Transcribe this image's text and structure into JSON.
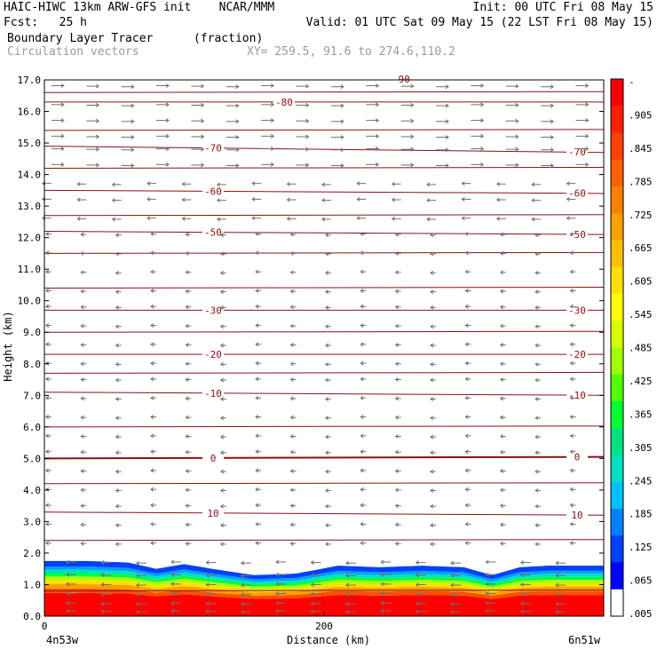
{
  "header": {
    "line1_left": "HAIC-HIWC 13km ARW-GFS init    NCAR/MMM",
    "line1_right": "Init: 00 UTC Fri 08 May 15",
    "line2_left": "Fcst:   25 h",
    "line2_right": "Valid: 01 UTC Sat 09 May 15 (22 LST Fri 08 May 15)",
    "field_name": "Boundary Layer Tracer",
    "field_units": "(fraction)",
    "overlay_name": "Circulation vectors",
    "xsec_coords": "XY= 259.5, 91.6 to 274.6,110.2"
  },
  "chart_data": {
    "type": "heatmap",
    "title": "Boundary Layer Tracer",
    "xlabel": "Distance (km)",
    "ylabel": "Height (km)",
    "xlim": [
      0,
      400
    ],
    "ylim": [
      0,
      17
    ],
    "grid": false,
    "x_ticks": [
      {
        "value": 0,
        "label": "0"
      },
      {
        "value": 200,
        "label": "200"
      }
    ],
    "x_end_labels": {
      "left": "4n53w",
      "right": "6n51w"
    },
    "y_ticks": [
      "0.0",
      "1.0",
      "2.0",
      "3.0",
      "4.0",
      "5.0",
      "6.0",
      "7.0",
      "8.0",
      "9.0",
      "10.0",
      "11.0",
      "12.0",
      "13.0",
      "14.0",
      "15.0",
      "16.0",
      "17.0"
    ],
    "colorbar": {
      "labels": [
        "-",
        ".905",
        ".845",
        ".785",
        ".725",
        ".665",
        ".605",
        ".545",
        ".485",
        ".425",
        ".365",
        ".305",
        ".245",
        ".185",
        ".125",
        ".065",
        ".005"
      ],
      "colors": [
        "#ff0000",
        "#ff2000",
        "#ff4000",
        "#ff6000",
        "#ff8000",
        "#ff9f00",
        "#ffbf00",
        "#ffdf00",
        "#ffff00",
        "#d8ff00",
        "#a0ff00",
        "#50ff00",
        "#00ff30",
        "#00e080",
        "#00e0c0",
        "#00c0ff",
        "#0080ff",
        "#0040ff",
        "#0000ff",
        "#ffffff"
      ]
    },
    "boundary_layer_top": [
      {
        "x": 0,
        "top_km": 1.75
      },
      {
        "x": 30,
        "top_km": 1.75
      },
      {
        "x": 60,
        "top_km": 1.7
      },
      {
        "x": 80,
        "top_km": 1.5
      },
      {
        "x": 100,
        "top_km": 1.65
      },
      {
        "x": 120,
        "top_km": 1.5
      },
      {
        "x": 150,
        "top_km": 1.3
      },
      {
        "x": 180,
        "top_km": 1.35
      },
      {
        "x": 210,
        "top_km": 1.6
      },
      {
        "x": 240,
        "top_km": 1.55
      },
      {
        "x": 270,
        "top_km": 1.6
      },
      {
        "x": 300,
        "top_km": 1.55
      },
      {
        "x": 320,
        "top_km": 1.3
      },
      {
        "x": 340,
        "top_km": 1.55
      },
      {
        "x": 360,
        "top_km": 1.6
      },
      {
        "x": 400,
        "top_km": 1.6
      }
    ],
    "temperature_contours_C": [
      {
        "value": -80,
        "label": "-80",
        "y_left": 16.3,
        "y_right": 16.3
      },
      {
        "value": -70,
        "label": "-70",
        "y_left": 14.9,
        "y_right": 14.7
      },
      {
        "value": -60,
        "label": "-60",
        "y_left": 13.5,
        "y_right": 13.4
      },
      {
        "value": -50,
        "label": "-50",
        "y_left": 12.2,
        "y_right": 12.1
      },
      {
        "value": -30,
        "label": "-30",
        "y_left": 9.7,
        "y_right": 9.7
      },
      {
        "value": -20,
        "label": "-20",
        "y_left": 8.3,
        "y_right": 8.3
      },
      {
        "value": -10,
        "label": "-10",
        "y_left": 7.1,
        "y_right": 7.0
      },
      {
        "value": 0,
        "label": "0",
        "y_left": 5.0,
        "y_right": 5.05
      },
      {
        "value": 10,
        "label": "10",
        "y_left": 3.3,
        "y_right": 3.2
      }
    ],
    "unlabeled_contours_km": [
      16.6,
      15.4,
      14.2,
      12.7,
      11.5,
      10.4,
      9.0,
      7.7,
      6.0,
      4.2,
      2.4,
      0.8
    ],
    "top_label": "-90",
    "vectors": {
      "levels_km": [
        16.8,
        16.2,
        15.7,
        15.2,
        14.8,
        14.3,
        13.7,
        13.2,
        12.6,
        12.1,
        11.5,
        10.9,
        10.3,
        9.8,
        9.2,
        8.6,
        8.0,
        7.5,
        6.9,
        6.3,
        5.7,
        5.2,
        4.6,
        4.0,
        3.5,
        2.9,
        2.3,
        1.7,
        1.3,
        1.0,
        0.7,
        0.4,
        0.15
      ],
      "columns_km": [
        5,
        30,
        55,
        80,
        105,
        130,
        155,
        180,
        205,
        230,
        255,
        280,
        305,
        330,
        355,
        380
      ]
    }
  }
}
